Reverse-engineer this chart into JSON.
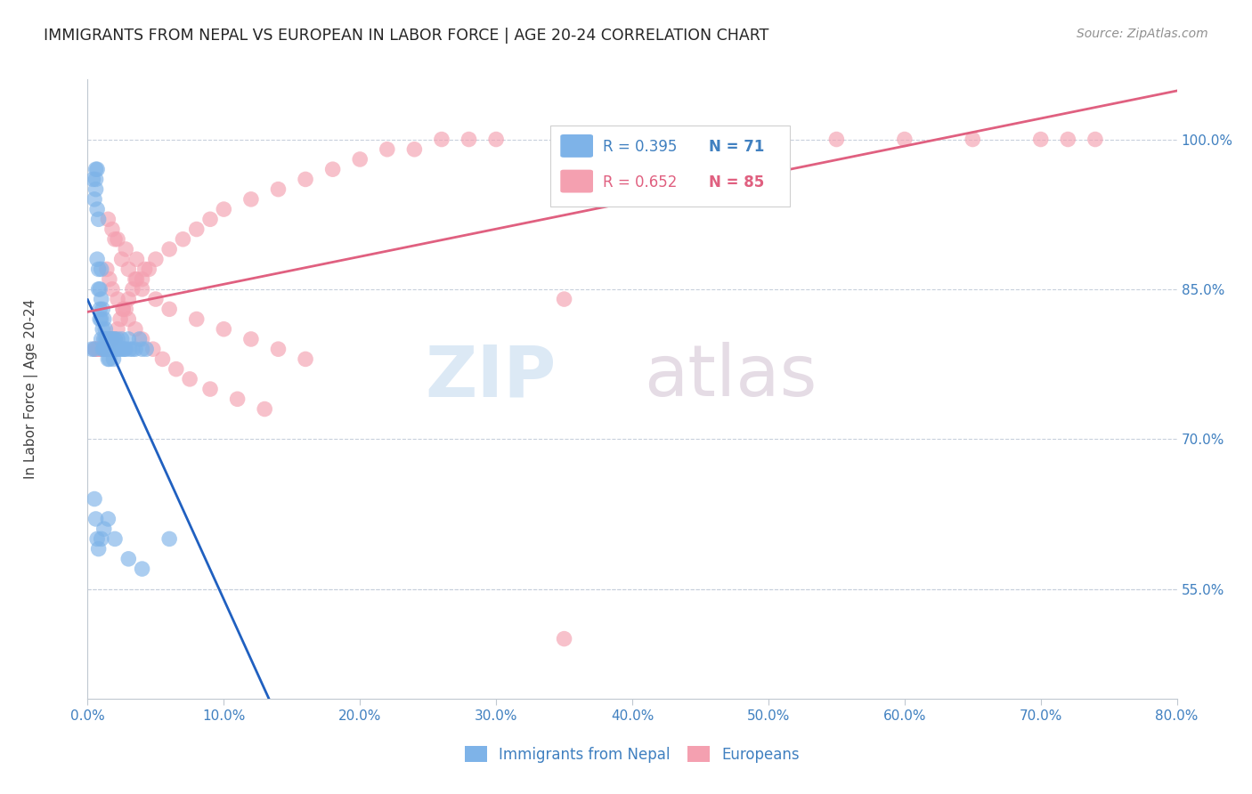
{
  "title": "IMMIGRANTS FROM NEPAL VS EUROPEAN IN LABOR FORCE | AGE 20-24 CORRELATION CHART",
  "source": "Source: ZipAtlas.com",
  "ylabel": "In Labor Force | Age 20-24",
  "xlim": [
    0.0,
    0.8
  ],
  "ylim": [
    0.44,
    1.06
  ],
  "plot_ylim": [
    0.55,
    1.06
  ],
  "xlabel_vals": [
    0.0,
    0.1,
    0.2,
    0.3,
    0.4,
    0.5,
    0.6,
    0.7,
    0.8
  ],
  "xlabel_ticks": [
    "0.0%",
    "10.0%",
    "20.0%",
    "30.0%",
    "40.0%",
    "50.0%",
    "60.0%",
    "70.0%",
    "80.0%"
  ],
  "ylabel_vals": [
    1.0,
    0.85,
    0.7,
    0.55
  ],
  "ylabel_ticks": [
    "100.0%",
    "85.0%",
    "70.0%",
    "55.0%"
  ],
  "nepal_R": 0.395,
  "nepal_N": 71,
  "europe_R": 0.652,
  "europe_N": 85,
  "nepal_color": "#7EB3E8",
  "europe_color": "#F4A0B0",
  "nepal_line_color": "#2060C0",
  "europe_line_color": "#E06080",
  "nepal_x": [
    0.003,
    0.004,
    0.005,
    0.005,
    0.006,
    0.006,
    0.006,
    0.007,
    0.007,
    0.007,
    0.008,
    0.008,
    0.008,
    0.009,
    0.009,
    0.009,
    0.01,
    0.01,
    0.01,
    0.01,
    0.011,
    0.011,
    0.011,
    0.012,
    0.012,
    0.012,
    0.013,
    0.013,
    0.013,
    0.014,
    0.014,
    0.015,
    0.015,
    0.015,
    0.016,
    0.016,
    0.016,
    0.017,
    0.017,
    0.018,
    0.018,
    0.019,
    0.019,
    0.02,
    0.02,
    0.021,
    0.022,
    0.023,
    0.024,
    0.025,
    0.026,
    0.027,
    0.028,
    0.03,
    0.031,
    0.033,
    0.035,
    0.038,
    0.04,
    0.043,
    0.005,
    0.006,
    0.007,
    0.008,
    0.01,
    0.012,
    0.015,
    0.02,
    0.03,
    0.04,
    0.06
  ],
  "nepal_y": [
    0.79,
    0.96,
    0.94,
    0.79,
    0.97,
    0.96,
    0.95,
    0.97,
    0.93,
    0.88,
    0.92,
    0.87,
    0.85,
    0.85,
    0.83,
    0.82,
    0.87,
    0.84,
    0.82,
    0.8,
    0.83,
    0.81,
    0.79,
    0.82,
    0.8,
    0.79,
    0.81,
    0.8,
    0.79,
    0.8,
    0.79,
    0.8,
    0.79,
    0.78,
    0.8,
    0.79,
    0.78,
    0.8,
    0.79,
    0.8,
    0.79,
    0.8,
    0.78,
    0.8,
    0.79,
    0.79,
    0.8,
    0.79,
    0.79,
    0.8,
    0.79,
    0.79,
    0.79,
    0.8,
    0.79,
    0.79,
    0.79,
    0.8,
    0.79,
    0.79,
    0.64,
    0.62,
    0.6,
    0.59,
    0.6,
    0.61,
    0.62,
    0.6,
    0.58,
    0.57,
    0.6
  ],
  "europe_x": [
    0.005,
    0.006,
    0.007,
    0.008,
    0.009,
    0.01,
    0.011,
    0.012,
    0.013,
    0.014,
    0.015,
    0.016,
    0.017,
    0.018,
    0.02,
    0.022,
    0.024,
    0.026,
    0.028,
    0.03,
    0.033,
    0.036,
    0.04,
    0.045,
    0.05,
    0.06,
    0.07,
    0.08,
    0.09,
    0.1,
    0.12,
    0.14,
    0.16,
    0.18,
    0.2,
    0.22,
    0.24,
    0.26,
    0.28,
    0.3,
    0.35,
    0.4,
    0.45,
    0.5,
    0.55,
    0.6,
    0.65,
    0.7,
    0.72,
    0.74,
    0.02,
    0.025,
    0.03,
    0.035,
    0.04,
    0.05,
    0.06,
    0.08,
    0.1,
    0.12,
    0.14,
    0.16,
    0.014,
    0.016,
    0.018,
    0.022,
    0.026,
    0.03,
    0.035,
    0.04,
    0.048,
    0.055,
    0.065,
    0.075,
    0.09,
    0.11,
    0.13,
    0.35,
    0.015,
    0.018,
    0.022,
    0.028,
    0.036,
    0.042,
    0.35
  ],
  "europe_y": [
    0.79,
    0.79,
    0.79,
    0.79,
    0.79,
    0.79,
    0.79,
    0.79,
    0.79,
    0.79,
    0.79,
    0.8,
    0.8,
    0.8,
    0.8,
    0.81,
    0.82,
    0.83,
    0.83,
    0.84,
    0.85,
    0.86,
    0.86,
    0.87,
    0.88,
    0.89,
    0.9,
    0.91,
    0.92,
    0.93,
    0.94,
    0.95,
    0.96,
    0.97,
    0.98,
    0.99,
    0.99,
    1.0,
    1.0,
    1.0,
    1.0,
    1.0,
    1.0,
    1.0,
    1.0,
    1.0,
    1.0,
    1.0,
    1.0,
    1.0,
    0.9,
    0.88,
    0.87,
    0.86,
    0.85,
    0.84,
    0.83,
    0.82,
    0.81,
    0.8,
    0.79,
    0.78,
    0.87,
    0.86,
    0.85,
    0.84,
    0.83,
    0.82,
    0.81,
    0.8,
    0.79,
    0.78,
    0.77,
    0.76,
    0.75,
    0.74,
    0.73,
    0.84,
    0.92,
    0.91,
    0.9,
    0.89,
    0.88,
    0.87,
    0.5
  ]
}
